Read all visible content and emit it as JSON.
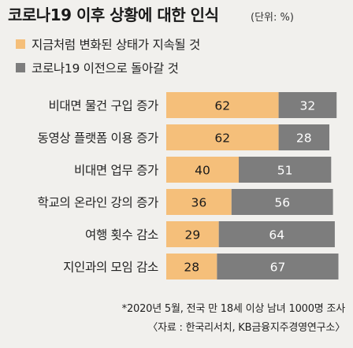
{
  "chart_data": {
    "type": "bar",
    "stacked": true,
    "orientation": "horizontal",
    "title": "코로나19 이후 상황에 대한 인식",
    "unit": "(단위: %)",
    "categories": [
      "비대면 물건 구입 증가",
      "동영상 플랫폼 이용 증가",
      "비대면 업무 증가",
      "학교의 온라인 강의 증가",
      "여행 횟수 감소",
      "지인과의 모임 감소"
    ],
    "series": [
      {
        "name": "지금처럼 변화된 상태가 지속될 것",
        "color": "#f5bf7a",
        "values": [
          62,
          62,
          40,
          36,
          29,
          28
        ]
      },
      {
        "name": "코로나19 이전으로 돌아갈 것",
        "color": "#7d7d7d",
        "values": [
          32,
          28,
          51,
          56,
          64,
          67
        ]
      }
    ],
    "xlim": [
      0,
      100
    ],
    "grid": false,
    "legend_position": "top-left",
    "notes": [
      "*2020년 5월, 전국 만 18세 이상 남녀 1000명 조사",
      "〈자료 : 한국리서치, KB금융지주경영연구소〉"
    ]
  }
}
